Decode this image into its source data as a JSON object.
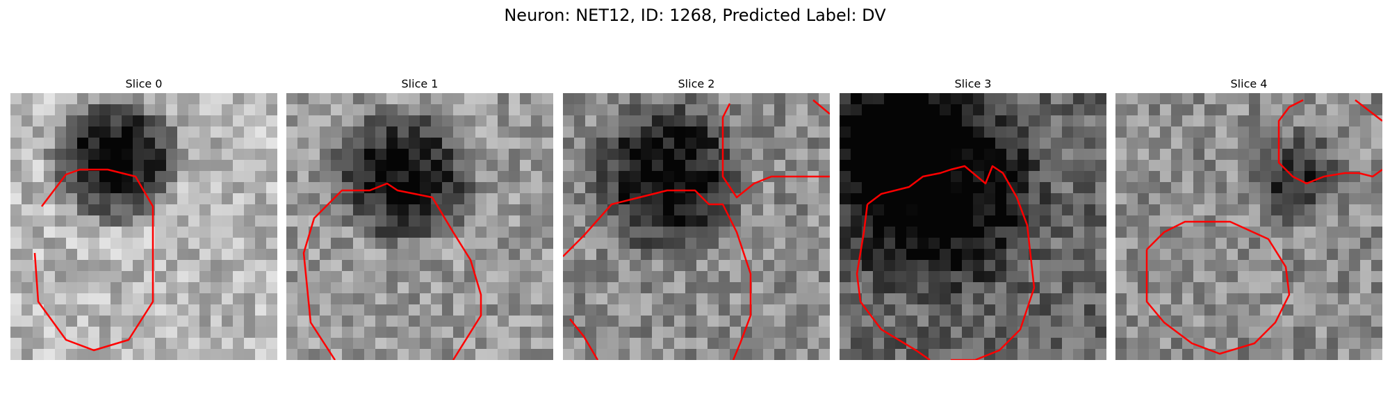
{
  "figure": {
    "title": "Neuron: NET12, ID: 1268, Predicted Label: DV"
  },
  "panels": [
    {
      "title": "Slice 0"
    },
    {
      "title": "Slice 1"
    },
    {
      "title": "Slice 2"
    },
    {
      "title": "Slice 3"
    },
    {
      "title": "Slice 4"
    }
  ],
  "colors": {
    "contour": "#ff0000",
    "background": "#ffffff"
  }
}
